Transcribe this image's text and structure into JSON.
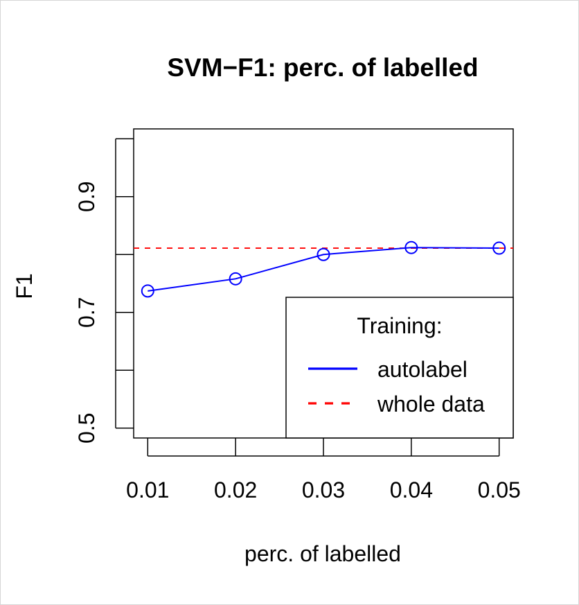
{
  "chart_data": {
    "type": "line",
    "title": "SVM−F1: perc. of labelled",
    "xlabel": "perc. of labelled",
    "ylabel": "F1",
    "x": [
      0.01,
      0.02,
      0.03,
      0.04,
      0.05
    ],
    "x_tick_labels": [
      "0.01",
      "0.02",
      "0.03",
      "0.04",
      "0.05"
    ],
    "y_ticks": [
      0.5,
      0.6,
      0.7,
      0.8,
      0.9,
      1.0
    ],
    "y_tick_labels": [
      "0.5",
      "",
      "0.7",
      "",
      "0.9",
      ""
    ],
    "xlim": [
      0.0084,
      0.0516
    ],
    "ylim": [
      0.483,
      1.017
    ],
    "grid": false,
    "series": [
      {
        "name": "autolabel",
        "values": [
          0.737,
          0.758,
          0.8,
          0.812,
          0.811
        ],
        "color": "#0000ff",
        "line_style": "solid",
        "marker": "open-circle"
      },
      {
        "name": "whole data",
        "values": [
          0.811,
          0.811
        ],
        "x": [
          0.0084,
          0.0516
        ],
        "color": "#ff0000",
        "line_style": "dashed",
        "marker": "none"
      }
    ],
    "legend": {
      "title": "Training:",
      "position": "bottom-right",
      "entries": [
        {
          "label": "autolabel",
          "color": "#0000ff",
          "line_style": "solid"
        },
        {
          "label": "whole data",
          "color": "#ff0000",
          "line_style": "dashed"
        }
      ]
    }
  }
}
